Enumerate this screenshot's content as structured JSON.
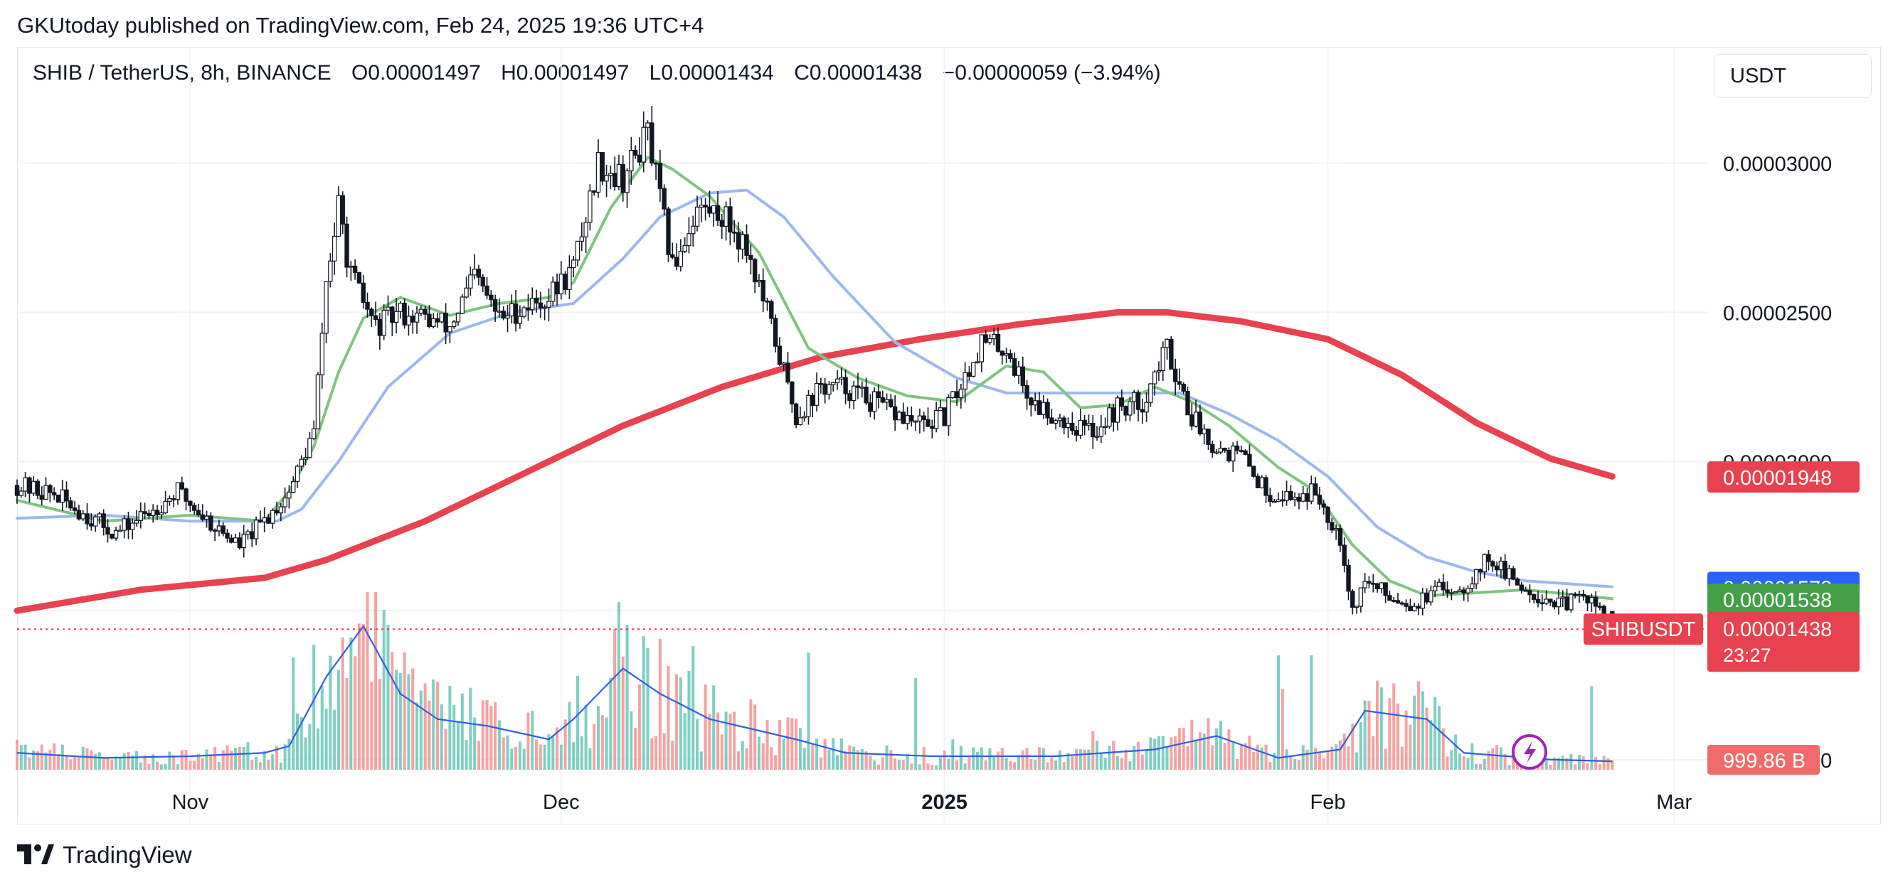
{
  "header": {
    "published": "GKUtoday published on TradingView.com, Feb 24, 2025 19:36 UTC+4"
  },
  "legend": {
    "symbol": "SHIB / TetherUS, 8h, BINANCE",
    "open": "O0.00001497",
    "high": "H0.00001497",
    "low": "L0.00001434",
    "close": "C0.00001438",
    "change": "−0.00000059 (−3.94%)"
  },
  "currency": "USDT",
  "footer": {
    "brand": "TradingView"
  },
  "colors": {
    "up": "#131722",
    "down": "#131722",
    "ma_fast": "#7fc47f",
    "ma_mid": "#9db8f0",
    "ma_slow": "#e8414f",
    "vol_up": "#7fcfc3",
    "vol_down": "#f4a3a3",
    "vol_ma": "#2f5fe0",
    "label_red": "#e8414f",
    "label_blue": "#2962ff",
    "label_green": "#43a047",
    "vol_label": "#f26b6b"
  },
  "chart_data": {
    "type": "candlestick",
    "interval": "8h",
    "x_ticks": [
      "Nov",
      "Dec",
      "2025",
      "Feb",
      "Mar"
    ],
    "y_ticks": [
      "0.00001000",
      "0.00001500",
      "0.00002000",
      "0.00002500",
      "0.00003000"
    ],
    "ylim": [
      9.5e-06,
      3.39e-05
    ],
    "x_range": [
      "2024-10-18",
      "2025-03-03"
    ],
    "grid": true,
    "price_points": [
      [
        "2024-10-18",
        1.92e-05
      ],
      [
        "2024-10-21",
        1.89e-05
      ],
      [
        "2024-10-24",
        1.81e-05
      ],
      [
        "2024-10-26",
        1.76e-05
      ],
      [
        "2024-10-29",
        1.84e-05
      ],
      [
        "2024-10-31",
        1.9e-05
      ],
      [
        "2024-11-03",
        1.78e-05
      ],
      [
        "2024-11-05",
        1.72e-05
      ],
      [
        "2024-11-07",
        1.8e-05
      ],
      [
        "2024-11-09",
        1.9e-05
      ],
      [
        "2024-11-11",
        2.1e-05
      ],
      [
        "2024-11-12",
        2.6e-05
      ],
      [
        "2024-11-13",
        2.85e-05
      ],
      [
        "2024-11-14",
        2.62e-05
      ],
      [
        "2024-11-16",
        2.45e-05
      ],
      [
        "2024-11-18",
        2.5e-05
      ],
      [
        "2024-11-20",
        2.48e-05
      ],
      [
        "2024-11-22",
        2.45e-05
      ],
      [
        "2024-11-24",
        2.62e-05
      ],
      [
        "2024-11-26",
        2.48e-05
      ],
      [
        "2024-11-28",
        2.52e-05
      ],
      [
        "2024-11-30",
        2.55e-05
      ],
      [
        "2024-12-02",
        2.65e-05
      ],
      [
        "2024-12-04",
        3e-05
      ],
      [
        "2024-12-06",
        2.95e-05
      ],
      [
        "2024-12-08",
        3.1e-05
      ],
      [
        "2024-12-10",
        2.65e-05
      ],
      [
        "2024-12-12",
        2.85e-05
      ],
      [
        "2024-12-14",
        2.83e-05
      ],
      [
        "2024-12-16",
        2.72e-05
      ],
      [
        "2024-12-18",
        2.45e-05
      ],
      [
        "2024-12-20",
        2.15e-05
      ],
      [
        "2024-12-22",
        2.25e-05
      ],
      [
        "2024-12-24",
        2.25e-05
      ],
      [
        "2024-12-27",
        2.18e-05
      ],
      [
        "2024-12-30",
        2.12e-05
      ],
      [
        "2025-01-01",
        2.15e-05
      ],
      [
        "2025-01-04",
        2.4e-05
      ],
      [
        "2025-01-06",
        2.38e-05
      ],
      [
        "2025-01-08",
        2.2e-05
      ],
      [
        "2025-01-11",
        2.13e-05
      ],
      [
        "2025-01-13",
        2.1e-05
      ],
      [
        "2025-01-15",
        2.18e-05
      ],
      [
        "2025-01-17",
        2.2e-05
      ],
      [
        "2025-01-19",
        2.38e-05
      ],
      [
        "2025-01-21",
        2.15e-05
      ],
      [
        "2025-01-23",
        2.05e-05
      ],
      [
        "2025-01-25",
        2.02e-05
      ],
      [
        "2025-01-27",
        1.9e-05
      ],
      [
        "2025-01-29",
        1.88e-05
      ],
      [
        "2025-01-31",
        1.9e-05
      ],
      [
        "2025-02-02",
        1.75e-05
      ],
      [
        "2025-02-03",
        1.5e-05
      ],
      [
        "2025-02-04",
        1.6e-05
      ],
      [
        "2025-02-06",
        1.55e-05
      ],
      [
        "2025-02-08",
        1.52e-05
      ],
      [
        "2025-02-10",
        1.57e-05
      ],
      [
        "2025-02-12",
        1.58e-05
      ],
      [
        "2025-02-14",
        1.68e-05
      ],
      [
        "2025-02-16",
        1.6e-05
      ],
      [
        "2025-02-18",
        1.55e-05
      ],
      [
        "2025-02-20",
        1.52e-05
      ],
      [
        "2025-02-22",
        1.55e-05
      ],
      [
        "2025-02-24",
        1.44e-05
      ]
    ],
    "ma_fast": [
      [
        "2024-10-18",
        1.87e-05
      ],
      [
        "2024-10-25",
        1.8e-05
      ],
      [
        "2024-11-01",
        1.82e-05
      ],
      [
        "2024-11-07",
        1.8e-05
      ],
      [
        "2024-11-09",
        1.9e-05
      ],
      [
        "2024-11-11",
        2.05e-05
      ],
      [
        "2024-11-13",
        2.3e-05
      ],
      [
        "2024-11-15",
        2.48e-05
      ],
      [
        "2024-11-18",
        2.55e-05
      ],
      [
        "2024-11-22",
        2.49e-05
      ],
      [
        "2024-11-26",
        2.53e-05
      ],
      [
        "2024-11-30",
        2.55e-05
      ],
      [
        "2024-12-02",
        2.6e-05
      ],
      [
        "2024-12-05",
        2.85e-05
      ],
      [
        "2024-12-08",
        3.02e-05
      ],
      [
        "2024-12-10",
        2.98e-05
      ],
      [
        "2024-12-13",
        2.89e-05
      ],
      [
        "2024-12-17",
        2.7e-05
      ],
      [
        "2024-12-21",
        2.38e-05
      ],
      [
        "2024-12-25",
        2.28e-05
      ],
      [
        "2024-12-29",
        2.22e-05
      ],
      [
        "2025-01-02",
        2.2e-05
      ],
      [
        "2025-01-06",
        2.32e-05
      ],
      [
        "2025-01-09",
        2.3e-05
      ],
      [
        "2025-01-12",
        2.18e-05
      ],
      [
        "2025-01-15",
        2.19e-05
      ],
      [
        "2025-01-18",
        2.25e-05
      ],
      [
        "2025-01-21",
        2.2e-05
      ],
      [
        "2025-01-24",
        2.12e-05
      ],
      [
        "2025-01-28",
        1.98e-05
      ],
      [
        "2025-01-31",
        1.9e-05
      ],
      [
        "2025-02-03",
        1.72e-05
      ],
      [
        "2025-02-06",
        1.6e-05
      ],
      [
        "2025-02-09",
        1.55e-05
      ],
      [
        "2025-02-13",
        1.56e-05
      ],
      [
        "2025-02-17",
        1.57e-05
      ],
      [
        "2025-02-24",
        1.54e-05
      ]
    ],
    "ma_mid": [
      [
        "2024-10-18",
        1.81e-05
      ],
      [
        "2024-10-25",
        1.82e-05
      ],
      [
        "2024-11-01",
        1.8e-05
      ],
      [
        "2024-11-08",
        1.8e-05
      ],
      [
        "2024-11-10",
        1.84e-05
      ],
      [
        "2024-11-13",
        2e-05
      ],
      [
        "2024-11-17",
        2.25e-05
      ],
      [
        "2024-11-22",
        2.43e-05
      ],
      [
        "2024-11-27",
        2.5e-05
      ],
      [
        "2024-12-02",
        2.53e-05
      ],
      [
        "2024-12-06",
        2.68e-05
      ],
      [
        "2024-12-09",
        2.82e-05
      ],
      [
        "2024-12-13",
        2.9e-05
      ],
      [
        "2024-12-16",
        2.91e-05
      ],
      [
        "2024-12-19",
        2.82e-05
      ],
      [
        "2024-12-23",
        2.62e-05
      ],
      [
        "2024-12-28",
        2.4e-05
      ],
      [
        "2025-01-02",
        2.28e-05
      ],
      [
        "2025-01-06",
        2.23e-05
      ],
      [
        "2025-01-10",
        2.23e-05
      ],
      [
        "2025-01-15",
        2.23e-05
      ],
      [
        "2025-01-20",
        2.23e-05
      ],
      [
        "2025-01-24",
        2.16e-05
      ],
      [
        "2025-01-28",
        2.07e-05
      ],
      [
        "2025-02-01",
        1.95e-05
      ],
      [
        "2025-02-05",
        1.78e-05
      ],
      [
        "2025-02-09",
        1.68e-05
      ],
      [
        "2025-02-13",
        1.63e-05
      ],
      [
        "2025-02-17",
        1.6e-05
      ],
      [
        "2025-02-24",
        1.58e-05
      ]
    ],
    "ma_slow": [
      [
        "2024-10-18",
        1.5e-05
      ],
      [
        "2024-10-28",
        1.57e-05
      ],
      [
        "2024-11-07",
        1.61e-05
      ],
      [
        "2024-11-12",
        1.67e-05
      ],
      [
        "2024-11-20",
        1.8e-05
      ],
      [
        "2024-11-28",
        1.96e-05
      ],
      [
        "2024-12-06",
        2.12e-05
      ],
      [
        "2024-12-14",
        2.25e-05
      ],
      [
        "2024-12-22",
        2.35e-05
      ],
      [
        "2024-12-30",
        2.41e-05
      ],
      [
        "2025-01-07",
        2.46e-05
      ],
      [
        "2025-01-15",
        2.5e-05
      ],
      [
        "2025-01-19",
        2.5e-05
      ],
      [
        "2025-01-25",
        2.47e-05
      ],
      [
        "2025-02-01",
        2.41e-05
      ],
      [
        "2025-02-07",
        2.29e-05
      ],
      [
        "2025-02-13",
        2.13e-05
      ],
      [
        "2025-02-19",
        2.01e-05
      ],
      [
        "2025-02-24",
        1.95e-05
      ]
    ],
    "volume_ma_points": [
      [
        "2024-10-18",
        0.1
      ],
      [
        "2024-10-25",
        0.07
      ],
      [
        "2024-11-01",
        0.08
      ],
      [
        "2024-11-07",
        0.1
      ],
      [
        "2024-11-09",
        0.14
      ],
      [
        "2024-11-12",
        0.55
      ],
      [
        "2024-11-15",
        0.85
      ],
      [
        "2024-11-18",
        0.45
      ],
      [
        "2024-11-21",
        0.3
      ],
      [
        "2024-11-25",
        0.26
      ],
      [
        "2024-11-30",
        0.18
      ],
      [
        "2024-12-02",
        0.3
      ],
      [
        "2024-12-06",
        0.6
      ],
      [
        "2024-12-09",
        0.45
      ],
      [
        "2024-12-13",
        0.3
      ],
      [
        "2024-12-20",
        0.18
      ],
      [
        "2024-12-24",
        0.1
      ],
      [
        "2024-12-31",
        0.08
      ],
      [
        "2025-01-10",
        0.08
      ],
      [
        "2025-01-18",
        0.12
      ],
      [
        "2025-01-23",
        0.2
      ],
      [
        "2025-01-28",
        0.07
      ],
      [
        "2025-02-02",
        0.12
      ],
      [
        "2025-02-04",
        0.35
      ],
      [
        "2025-02-09",
        0.3
      ],
      [
        "2025-02-12",
        0.1
      ],
      [
        "2025-02-19",
        0.06
      ],
      [
        "2025-02-24",
        0.05
      ]
    ],
    "price_labels": [
      {
        "text": "0.00001948",
        "color": "label_red",
        "value": 1.948e-05
      },
      {
        "text": "0.00001578",
        "color": "label_blue",
        "value": 1.578e-05
      },
      {
        "text": "0.00001538",
        "color": "label_green",
        "value": 1.538e-05
      }
    ],
    "last_price": {
      "symbol": "SHIBUSDT",
      "price": "0.00001438",
      "countdown": "23:27",
      "value": 1.438e-05
    },
    "volume_label": "999.86 B"
  }
}
